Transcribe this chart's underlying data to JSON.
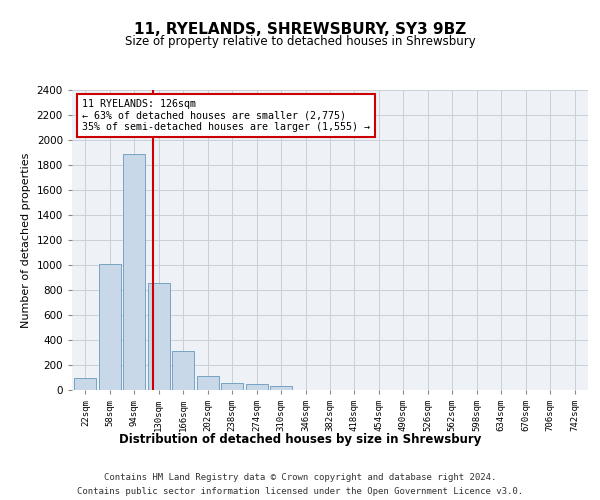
{
  "title": "11, RYELANDS, SHREWSBURY, SY3 9BZ",
  "subtitle": "Size of property relative to detached houses in Shrewsbury",
  "xlabel": "Distribution of detached houses by size in Shrewsbury",
  "ylabel": "Number of detached properties",
  "bin_labels": [
    "22sqm",
    "58sqm",
    "94sqm",
    "130sqm",
    "166sqm",
    "202sqm",
    "238sqm",
    "274sqm",
    "310sqm",
    "346sqm",
    "382sqm",
    "418sqm",
    "454sqm",
    "490sqm",
    "526sqm",
    "562sqm",
    "598sqm",
    "634sqm",
    "670sqm",
    "706sqm",
    "742sqm"
  ],
  "bar_values": [
    95,
    1010,
    1890,
    860,
    310,
    115,
    55,
    50,
    30,
    0,
    0,
    0,
    0,
    0,
    0,
    0,
    0,
    0,
    0,
    0,
    0
  ],
  "bar_color": "#c8d8e8",
  "bar_edge_color": "#6699bb",
  "ylim": [
    0,
    2400
  ],
  "yticks": [
    0,
    200,
    400,
    600,
    800,
    1000,
    1200,
    1400,
    1600,
    1800,
    2000,
    2200,
    2400
  ],
  "vline_x": 2.78,
  "annotation_text": "11 RYELANDS: 126sqm\n← 63% of detached houses are smaller (2,775)\n35% of semi-detached houses are larger (1,555) →",
  "annotation_box_color": "#cc0000",
  "footer_line1": "Contains HM Land Registry data © Crown copyright and database right 2024.",
  "footer_line2": "Contains public sector information licensed under the Open Government Licence v3.0.",
  "bg_color": "#eef2f6",
  "grid_color": "#c8d0d8"
}
